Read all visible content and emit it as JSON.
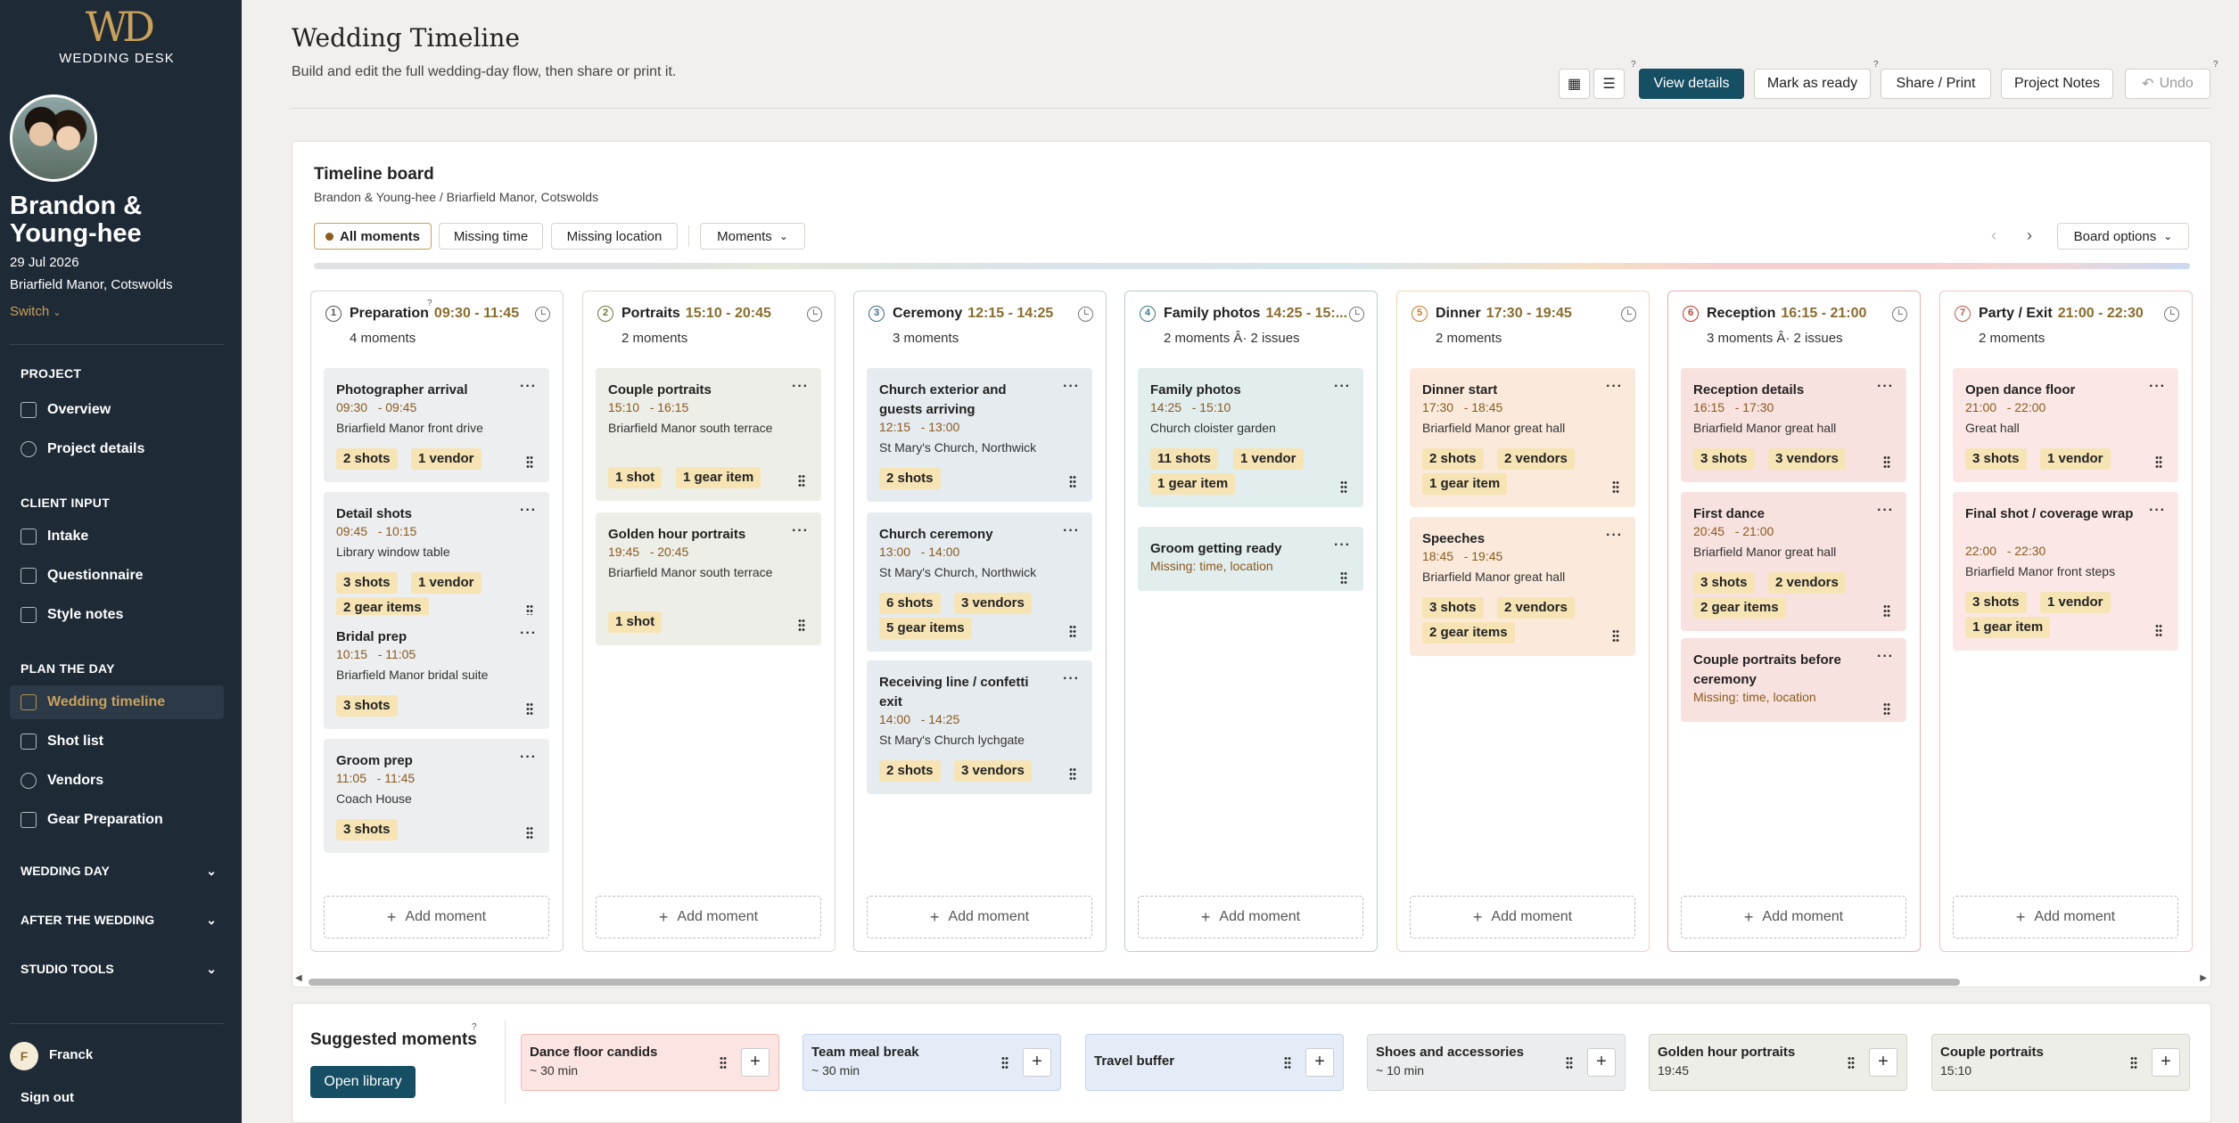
{
  "sidebar": {
    "logo_mark": "WD",
    "logo_text": "WEDDING DESK",
    "couple_name": "Brandon & Young-hee",
    "date": "29 Jul 2026",
    "venue": "Briarfield Manor, Cotswolds",
    "switch_label": "Switch",
    "sections": {
      "project": "PROJECT",
      "client_input": "CLIENT INPUT",
      "plan": "PLAN THE DAY"
    },
    "items": {
      "overview": "Overview",
      "project_details": "Project details",
      "intake": "Intake",
      "questionnaire": "Questionnaire",
      "style_notes": "Style notes",
      "wedding_timeline": "Wedding timeline",
      "shot_list": "Shot list",
      "vendors": "Vendors",
      "gear_preparation": "Gear Preparation"
    },
    "groups": {
      "wedding_day": "WEDDING DAY",
      "after_wedding": "AFTER THE WEDDING",
      "studio_tools": "STUDIO TOOLS"
    },
    "user_initial": "F",
    "user_name": "Franck",
    "sign_out": "Sign out"
  },
  "header": {
    "title": "Wedding Timeline",
    "subtitle": "Build and edit the full wedding-day flow, then share or print it.",
    "view_details": "View details",
    "mark_ready": "Mark as ready",
    "share_print": "Share / Print",
    "project_notes": "Project Notes",
    "undo": "Undo",
    "help": "?"
  },
  "board": {
    "title": "Timeline board",
    "breadcrumb": "Brandon & Young-hee / Briarfield Manor, Cotswolds",
    "filters": {
      "all": "All moments",
      "missing_time": "Missing time",
      "missing_location": "Missing location",
      "moments": "Moments"
    },
    "board_options": "Board options",
    "add_moment": "Add moment",
    "columns": [
      {
        "num": "1",
        "name": "Preparation",
        "time": "09:30 - 11:45",
        "count": "4 moments",
        "cards": [
          {
            "title": "Photographer arrival",
            "time": "09:30   - 09:45",
            "loc": "Briarfield Manor front drive",
            "chips": [
              "2 shots",
              "1 vendor"
            ]
          },
          {
            "title": "Detail shots",
            "time": "09:45   - 10:15",
            "loc": "Library window table",
            "chips": [
              "3 shots",
              "1 vendor",
              "2 gear items"
            ]
          },
          {
            "title": "Bridal prep",
            "time": "10:15   - 11:05",
            "loc": "Briarfield Manor bridal suite",
            "chips": [
              "3 shots"
            ]
          },
          {
            "title": "Groom prep",
            "time": "11:05   - 11:45",
            "loc": "Coach House",
            "chips": [
              "3 shots"
            ]
          }
        ]
      },
      {
        "num": "2",
        "name": "Portraits",
        "time": "15:10 - 20:45",
        "count": "2 moments",
        "cards": [
          {
            "title": "Couple portraits",
            "time": "15:10   - 16:15",
            "loc": "Briarfield Manor south terrace",
            "chips": [
              "1 shot",
              "1 gear item"
            ]
          },
          {
            "title": "Golden hour portraits",
            "time": "19:45   - 20:45",
            "loc": "Briarfield Manor south terrace",
            "chips": [
              "1 shot"
            ]
          }
        ]
      },
      {
        "num": "3",
        "name": "Ceremony",
        "time": "12:15 - 14:25",
        "count": "3 moments",
        "cards": [
          {
            "title": "Church exterior and guests arriving",
            "time": "12:15   - 13:00",
            "loc": "St Mary's Church, Northwick",
            "chips": [
              "2 shots"
            ]
          },
          {
            "title": "Church ceremony",
            "time": "13:00   - 14:00",
            "loc": "St Mary's Church, Northwick",
            "chips": [
              "6 shots",
              "3 vendors",
              "5 gear items"
            ]
          },
          {
            "title": "Receiving line / confetti exit",
            "time": "14:00   - 14:25",
            "loc": "St Mary's Church lychgate",
            "chips": [
              "2 shots",
              "3 vendors"
            ]
          }
        ]
      },
      {
        "num": "4",
        "name": "Family photos",
        "time": "14:25 - 15:...",
        "count": "2 moments Â· 2 issues",
        "cards": [
          {
            "title": "Family photos",
            "time": "14:25   - 15:10",
            "loc": "Church cloister garden",
            "chips": [
              "11 shots",
              "1 vendor",
              "1 gear item"
            ]
          },
          {
            "title": "Groom getting ready",
            "missing": "Missing: time, location"
          }
        ]
      },
      {
        "num": "5",
        "name": "Dinner",
        "time": "17:30 - 19:45",
        "count": "2 moments",
        "cards": [
          {
            "title": "Dinner start",
            "time": "17:30   - 18:45",
            "loc": "Briarfield Manor great hall",
            "chips": [
              "2 shots",
              "2 vendors",
              "1 gear item"
            ]
          },
          {
            "title": "Speeches",
            "time": "18:45   - 19:45",
            "loc": "Briarfield Manor great hall",
            "chips": [
              "3 shots",
              "2 vendors",
              "2 gear items"
            ]
          }
        ]
      },
      {
        "num": "6",
        "name": "Reception",
        "time": "16:15 - 21:00",
        "count": "3 moments Â· 2 issues",
        "cards": [
          {
            "title": "Reception details",
            "time": "16:15   - 17:30",
            "loc": "Briarfield Manor great hall",
            "chips": [
              "3 shots",
              "3 vendors"
            ]
          },
          {
            "title": "First dance",
            "time": "20:45   - 21:00",
            "loc": "Briarfield Manor great hall",
            "chips": [
              "3 shots",
              "2 vendors",
              "2 gear items"
            ]
          },
          {
            "title": "Couple portraits before ceremony",
            "missing": "Missing: time, location"
          }
        ]
      },
      {
        "num": "7",
        "name": "Party / Exit",
        "time": "21:00 - 22:30",
        "count": "2 moments",
        "cards": [
          {
            "title": "Open dance floor",
            "time": "21:00   - 22:00",
            "loc": "Great hall",
            "chips": [
              "3 shots",
              "1 vendor"
            ]
          },
          {
            "title": "Final shot / coverage wrap",
            "time": "22:00   - 22:30",
            "loc": "Briarfield Manor front steps",
            "chips": [
              "3 shots",
              "1 vendor",
              "1 gear item"
            ]
          }
        ]
      }
    ]
  },
  "suggested": {
    "title": "Suggested moments",
    "open_library": "Open library",
    "items": [
      {
        "title": "Dance floor candids",
        "sub": "~ 30 min"
      },
      {
        "title": "Team meal break",
        "sub": "~ 30 min"
      },
      {
        "title": "Travel buffer",
        "sub": ""
      },
      {
        "title": "Shoes and accessories",
        "sub": "~ 10 min"
      },
      {
        "title": "Golden hour portraits",
        "sub": "19:45"
      },
      {
        "title": "Couple portraits",
        "sub": "15:10"
      }
    ]
  },
  "colors": {
    "brand": "#1e2a36",
    "accent": "#c9a15a",
    "primary_button": "#164e63",
    "chip": "#f7e4b5",
    "preparation": "#eceeef",
    "portraits": "#edeee7",
    "ceremony": "#e6ebef",
    "family": "#e2edee",
    "dinner": "#fbeadb",
    "reception": "#f8e2df",
    "party": "#fbe8e6"
  }
}
